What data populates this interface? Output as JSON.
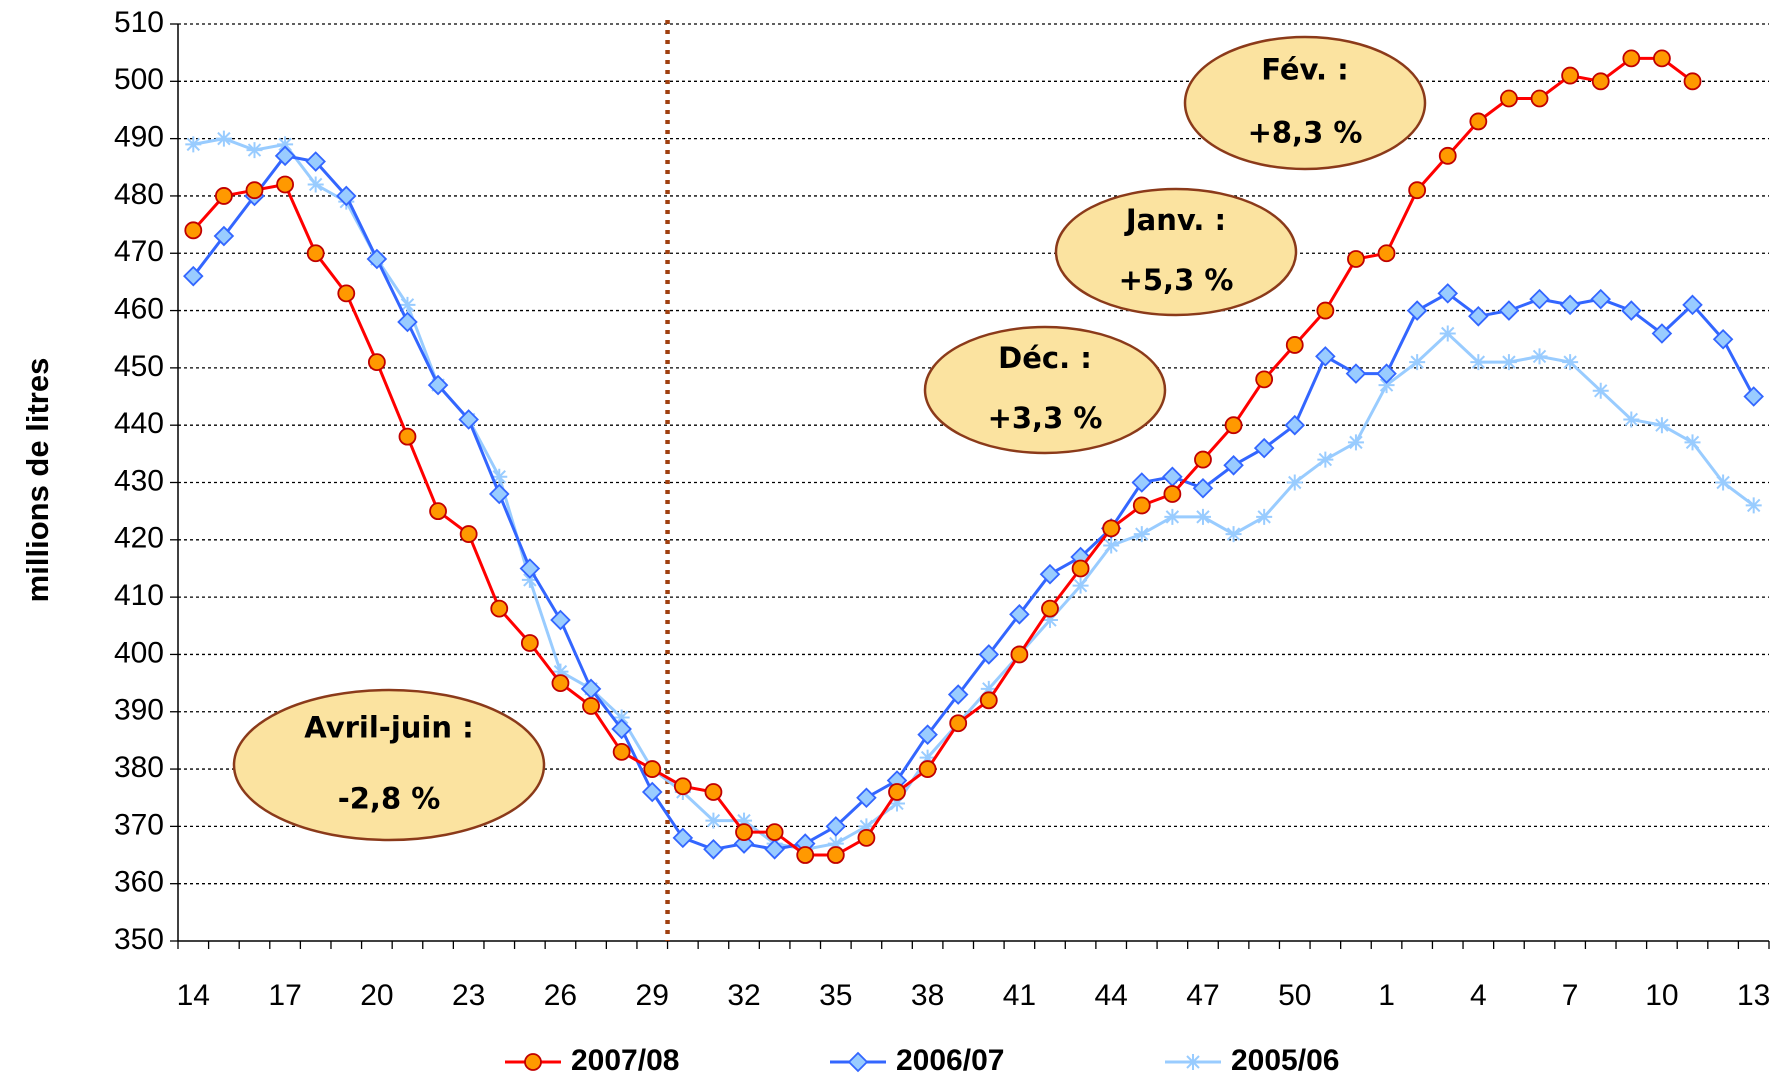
{
  "chart_data": {
    "type": "line",
    "y_label": "millions de litres",
    "categories": [
      14,
      null,
      null,
      17,
      null,
      null,
      20,
      null,
      null,
      23,
      null,
      null,
      26,
      null,
      null,
      29,
      null,
      null,
      32,
      null,
      null,
      35,
      null,
      null,
      38,
      null,
      null,
      41,
      null,
      null,
      44,
      null,
      null,
      47,
      null,
      null,
      50,
      null,
      null,
      1,
      null,
      null,
      4,
      null,
      null,
      7,
      null,
      null,
      10,
      null,
      null,
      13
    ],
    "series": [
      {
        "name": "2007/08",
        "color": "#ff0000",
        "marker": "circle",
        "marker_color": "#ff9900",
        "values": [
          474,
          480,
          481,
          482,
          470,
          463,
          451,
          438,
          425,
          421,
          408,
          402,
          395,
          391,
          383,
          380,
          377,
          376,
          369,
          369,
          365,
          365,
          368,
          376,
          380,
          388,
          392,
          400,
          408,
          415,
          422,
          426,
          428,
          434,
          440,
          448,
          454,
          460,
          469,
          470,
          481,
          487,
          493,
          497,
          497,
          501,
          500,
          504,
          504,
          500,
          null,
          null
        ]
      },
      {
        "name": "2006/07",
        "color": "#3366ff",
        "marker": "diamond",
        "marker_color": "#99ccff",
        "values": [
          466,
          473,
          480,
          487,
          486,
          480,
          469,
          458,
          447,
          441,
          428,
          415,
          406,
          394,
          387,
          376,
          368,
          366,
          367,
          366,
          367,
          370,
          375,
          378,
          386,
          393,
          400,
          407,
          414,
          417,
          422,
          430,
          431,
          429,
          433,
          436,
          440,
          452,
          449,
          449,
          460,
          463,
          459,
          460,
          462,
          461,
          462,
          460,
          456,
          461,
          455,
          445
        ]
      },
      {
        "name": "2005/06",
        "color": "#99ccff",
        "marker": "star",
        "marker_color": "#99ccff",
        "values": [
          489,
          490,
          488,
          489,
          482,
          479,
          469,
          461,
          447,
          441,
          431,
          413,
          397,
          394,
          389,
          380,
          376,
          371,
          371,
          367,
          366,
          367,
          370,
          374,
          382,
          388,
          394,
          400,
          406,
          412,
          419,
          421,
          424,
          424,
          421,
          424,
          430,
          434,
          437,
          447,
          451,
          456,
          451,
          451,
          452,
          451,
          446,
          441,
          440,
          437,
          430,
          426
        ]
      }
    ],
    "ylim": [
      350,
      510
    ],
    "yticks": [
      350,
      360,
      370,
      380,
      390,
      400,
      410,
      420,
      430,
      440,
      450,
      460,
      470,
      480,
      490,
      500,
      510
    ],
    "grid": true,
    "annotations": [
      {
        "lines": [
          "Avril-juin :",
          "-2,8 %"
        ]
      },
      {
        "lines": [
          "Déc. :",
          "+3,3 %"
        ]
      },
      {
        "lines": [
          "Janv. :",
          "+5,3 %"
        ]
      },
      {
        "lines": [
          "Fév. :",
          "+8,3 %"
        ]
      }
    ]
  }
}
